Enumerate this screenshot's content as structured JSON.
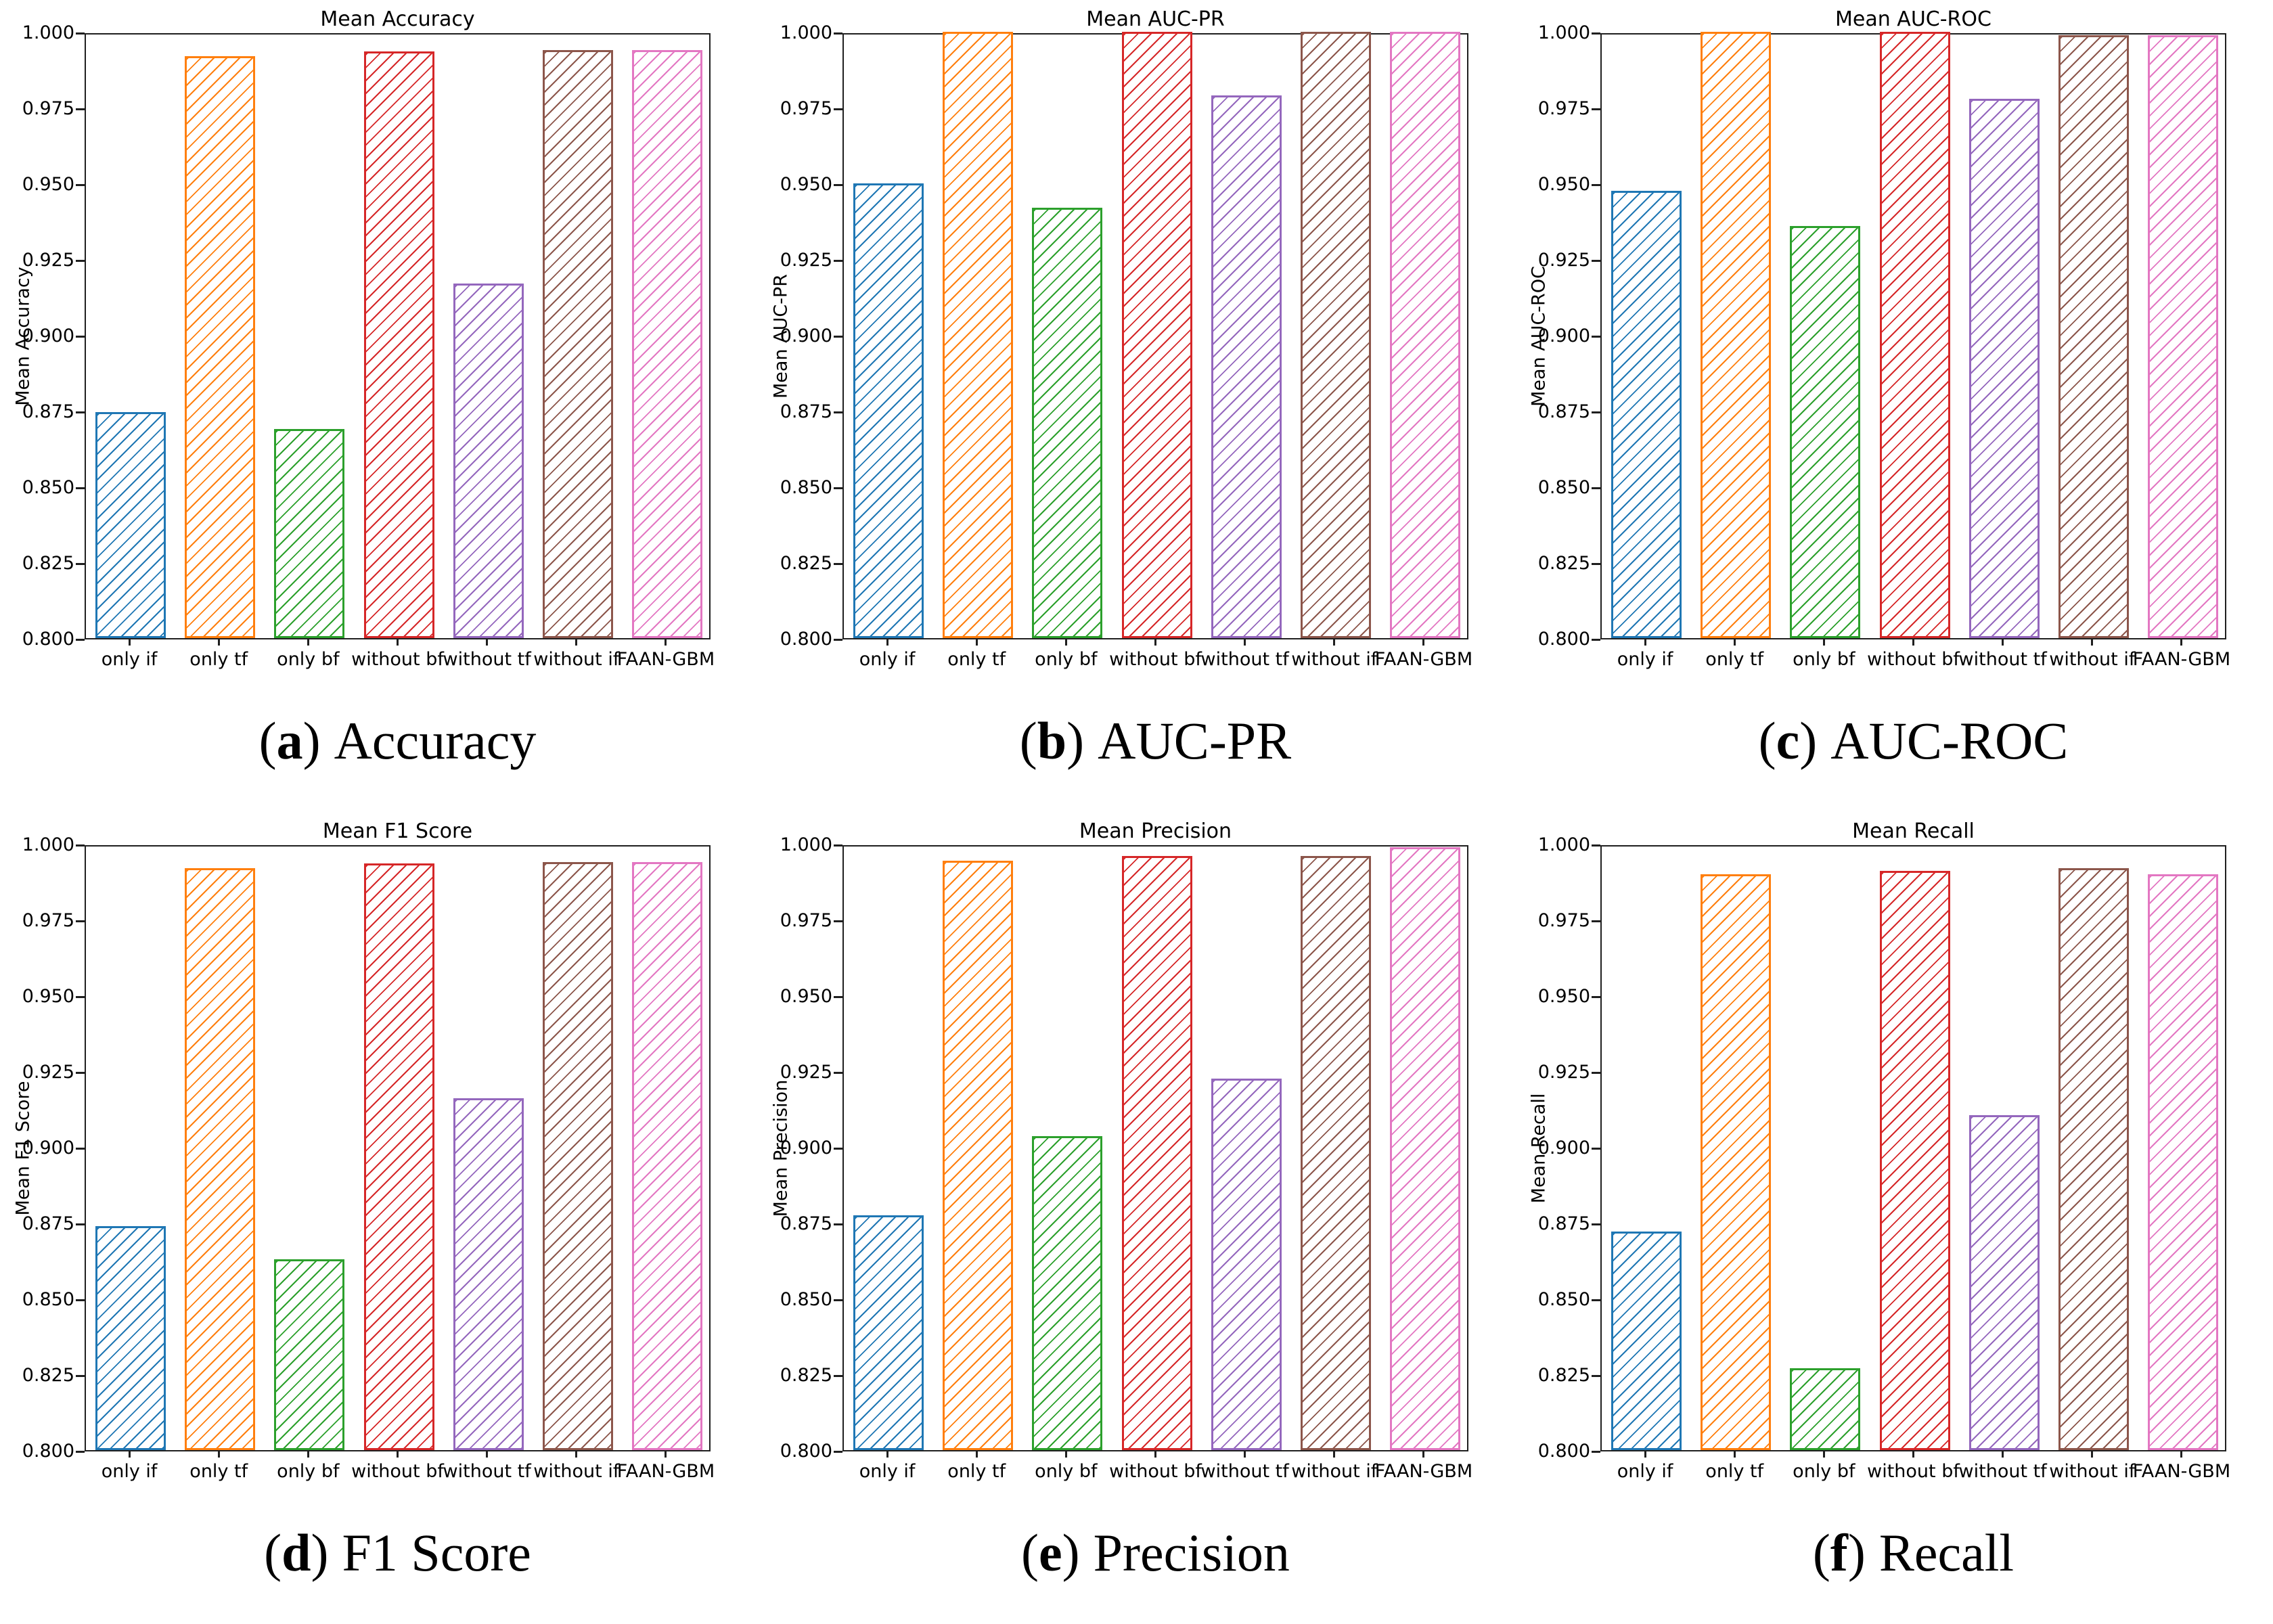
{
  "figure": {
    "kind": "six-panel ablation bar charts",
    "background": "#ffffff",
    "axis_color": "#1f1f1f",
    "hatch_style": "/"
  },
  "chart_data": [
    {
      "type": "bar",
      "panel": "a",
      "title": "Mean Accuracy",
      "ylabel": "Mean Accuracy",
      "xlabel": "",
      "caption_letter": "a",
      "caption_text": "Accuracy",
      "categories": [
        "only if",
        "only tf",
        "only bf",
        "without bf",
        "without tf",
        "without if",
        "FAAN-GBM"
      ],
      "values": [
        0.8745,
        0.992,
        0.869,
        0.9935,
        0.917,
        0.994,
        0.994
      ],
      "colors": [
        "#1f77b4",
        "#ff7f0e",
        "#2ca02c",
        "#d62728",
        "#9467bd",
        "#8c564b",
        "#e377c2"
      ],
      "ylim": [
        0.8,
        1.0
      ],
      "yticks": [
        "1.000",
        "0.975",
        "0.950",
        "0.925",
        "0.900",
        "0.875",
        "0.850",
        "0.825",
        "0.800"
      ],
      "grid": false,
      "legend": "none",
      "hatch": "/"
    },
    {
      "type": "bar",
      "panel": "b",
      "title": "Mean AUC-PR",
      "ylabel": "Mean AUC-PR",
      "xlabel": "",
      "caption_letter": "b",
      "caption_text": "AUC-PR",
      "categories": [
        "only if",
        "only tf",
        "only bf",
        "without bf",
        "without tf",
        "without if",
        "FAAN-GBM"
      ],
      "values": [
        0.95,
        1.0,
        0.942,
        1.0,
        0.979,
        1.0,
        1.0
      ],
      "colors": [
        "#1f77b4",
        "#ff7f0e",
        "#2ca02c",
        "#d62728",
        "#9467bd",
        "#8c564b",
        "#e377c2"
      ],
      "ylim": [
        0.8,
        1.0
      ],
      "yticks": [
        "1.000",
        "0.975",
        "0.950",
        "0.925",
        "0.900",
        "0.875",
        "0.850",
        "0.825",
        "0.800"
      ],
      "grid": false,
      "legend": "none",
      "hatch": "/"
    },
    {
      "type": "bar",
      "panel": "c",
      "title": "Mean AUC-ROC",
      "ylabel": "Mean AUC-ROC",
      "xlabel": "",
      "caption_letter": "c",
      "caption_text": "AUC-ROC",
      "categories": [
        "only if",
        "only tf",
        "only bf",
        "without bf",
        "without tf",
        "without if",
        "FAAN-GBM"
      ],
      "values": [
        0.9475,
        1.0,
        0.936,
        1.0,
        0.978,
        0.999,
        0.999
      ],
      "colors": [
        "#1f77b4",
        "#ff7f0e",
        "#2ca02c",
        "#d62728",
        "#9467bd",
        "#8c564b",
        "#e377c2"
      ],
      "ylim": [
        0.8,
        1.0
      ],
      "yticks": [
        "1.000",
        "0.975",
        "0.950",
        "0.925",
        "0.900",
        "0.875",
        "0.850",
        "0.825",
        "0.800"
      ],
      "grid": false,
      "legend": "none",
      "hatch": "/"
    },
    {
      "type": "bar",
      "panel": "d",
      "title": "Mean F1 Score",
      "ylabel": "Mean F1 Score",
      "xlabel": "",
      "caption_letter": "d",
      "caption_text": "F1 Score",
      "categories": [
        "only if",
        "only tf",
        "only bf",
        "without bf",
        "without tf",
        "without if",
        "FAAN-GBM"
      ],
      "values": [
        0.874,
        0.992,
        0.863,
        0.9935,
        0.916,
        0.994,
        0.994
      ],
      "colors": [
        "#1f77b4",
        "#ff7f0e",
        "#2ca02c",
        "#d62728",
        "#9467bd",
        "#8c564b",
        "#e377c2"
      ],
      "ylim": [
        0.8,
        1.0
      ],
      "yticks": [
        "1.000",
        "0.975",
        "0.950",
        "0.925",
        "0.900",
        "0.875",
        "0.850",
        "0.825",
        "0.800"
      ],
      "grid": false,
      "legend": "none",
      "hatch": "/"
    },
    {
      "type": "bar",
      "panel": "e",
      "title": "Mean Precision",
      "ylabel": "Mean Precision",
      "xlabel": "",
      "caption_letter": "e",
      "caption_text": "Precision",
      "categories": [
        "only if",
        "only tf",
        "only bf",
        "without bf",
        "without tf",
        "without if",
        "FAAN-GBM"
      ],
      "values": [
        0.8775,
        0.9945,
        0.9035,
        0.996,
        0.9225,
        0.996,
        0.999
      ],
      "colors": [
        "#1f77b4",
        "#ff7f0e",
        "#2ca02c",
        "#d62728",
        "#9467bd",
        "#8c564b",
        "#e377c2"
      ],
      "ylim": [
        0.8,
        1.0
      ],
      "yticks": [
        "1.000",
        "0.975",
        "0.950",
        "0.925",
        "0.900",
        "0.875",
        "0.850",
        "0.825",
        "0.800"
      ],
      "grid": false,
      "legend": "none",
      "hatch": "/"
    },
    {
      "type": "bar",
      "panel": "f",
      "title": "Mean Recall",
      "ylabel": "Mean Recall",
      "xlabel": "",
      "caption_letter": "f",
      "caption_text": "Recall",
      "categories": [
        "only if",
        "only tf",
        "only bf",
        "without bf",
        "without tf",
        "without if",
        "FAAN-GBM"
      ],
      "values": [
        0.872,
        0.99,
        0.827,
        0.991,
        0.9105,
        0.992,
        0.99
      ],
      "colors": [
        "#1f77b4",
        "#ff7f0e",
        "#2ca02c",
        "#d62728",
        "#9467bd",
        "#8c564b",
        "#e377c2"
      ],
      "ylim": [
        0.8,
        1.0
      ],
      "yticks": [
        "1.000",
        "0.975",
        "0.950",
        "0.925",
        "0.900",
        "0.875",
        "0.850",
        "0.825",
        "0.800"
      ],
      "grid": false,
      "legend": "none",
      "hatch": "/"
    }
  ]
}
